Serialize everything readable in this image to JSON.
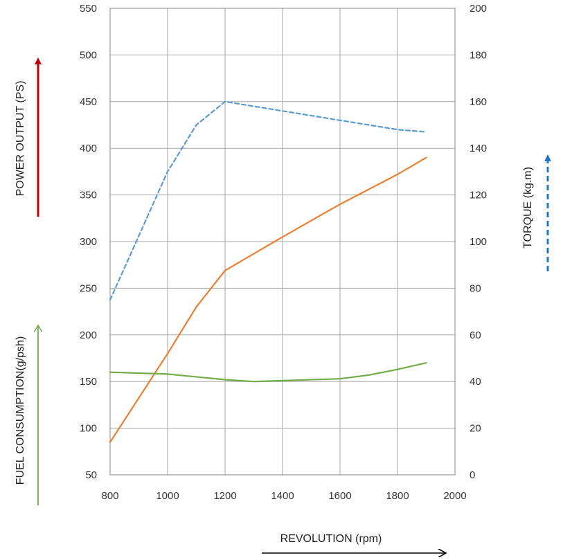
{
  "colors": {
    "power": "#ED7D31",
    "torque": "#5B9BD5",
    "fuel": "#70AD47",
    "power_arrow": "#C00000",
    "torque_arrow": "#1F77C8",
    "fuel_arrow": "#70AD47",
    "grid": "#A6A6A6",
    "frame": "#888888",
    "revolution_arrow": "#000000"
  },
  "chart_data": {
    "type": "line",
    "grid": true,
    "xlabel": "REVOLUTION (rpm)",
    "xlim": [
      800,
      2000
    ],
    "x_ticks": [
      800,
      1000,
      1200,
      1400,
      1600,
      1800,
      2000
    ],
    "ylabel_left_upper": "POWER OUTPUT (PS)",
    "ylabel_left_lower": "FUEL CONSUMPTION(g/psh)",
    "ylim_left": [
      50,
      550
    ],
    "y_ticks_left": [
      50,
      100,
      150,
      200,
      250,
      300,
      350,
      400,
      450,
      500,
      550
    ],
    "ylabel_right": "TORQUE (kg.m)",
    "ylim_right": [
      0,
      200
    ],
    "y_ticks_right": [
      0,
      20,
      40,
      60,
      80,
      100,
      120,
      140,
      160,
      180,
      200
    ],
    "series": [
      {
        "key": "power",
        "axis": "left",
        "style": "solid",
        "x": [
          800,
          1000,
          1100,
          1200,
          1400,
          1600,
          1800,
          1900
        ],
        "y": [
          85,
          180,
          230,
          269,
          305,
          340,
          372,
          390
        ]
      },
      {
        "key": "torque",
        "axis": "right",
        "style": "dashed",
        "x": [
          800,
          1000,
          1100,
          1200,
          1400,
          1600,
          1800,
          1900
        ],
        "y": [
          75,
          130,
          150,
          160,
          156,
          152,
          148,
          147
        ]
      },
      {
        "key": "fuel",
        "axis": "left",
        "style": "solid",
        "x": [
          800,
          1000,
          1200,
          1300,
          1400,
          1600,
          1700,
          1800,
          1900
        ],
        "y": [
          160,
          158,
          152,
          150,
          151,
          153,
          157,
          163,
          170
        ]
      }
    ]
  }
}
